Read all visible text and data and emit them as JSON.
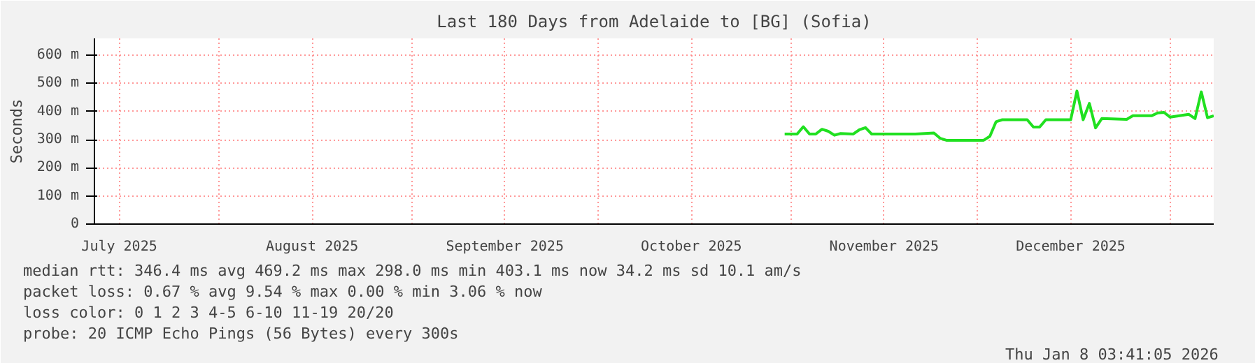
{
  "chart_data": {
    "type": "line",
    "title": "Last 180 Days from Adelaide to [BG] (Sofia)",
    "ylabel": "Seconds",
    "x": [
      "2025-10-31",
      "2025-11-02",
      "2025-11-03",
      "2025-11-04",
      "2025-11-05",
      "2025-11-06",
      "2025-11-07",
      "2025-11-08",
      "2025-11-09",
      "2025-11-11",
      "2025-11-12",
      "2025-11-13",
      "2025-11-14",
      "2025-11-21",
      "2025-11-24",
      "2025-11-25",
      "2025-11-26",
      "2025-12-02",
      "2025-12-03",
      "2025-12-04",
      "2025-12-05",
      "2025-12-09",
      "2025-12-10",
      "2025-12-11",
      "2025-12-12",
      "2025-12-16",
      "2025-12-17",
      "2025-12-18",
      "2025-12-19",
      "2025-12-20",
      "2025-12-21",
      "2025-12-25",
      "2025-12-26",
      "2025-12-29",
      "2025-12-30",
      "2025-12-31",
      "2026-01-01",
      "2026-01-04",
      "2026-01-05",
      "2026-01-06",
      "2026-01-07",
      "2026-01-08"
    ],
    "series": [
      {
        "color": "#20e020",
        "values": [
          320,
          320,
          346,
          320,
          320,
          337,
          330,
          316,
          322,
          320,
          335,
          343,
          320,
          320,
          324,
          305,
          298,
          298,
          312,
          364,
          371,
          371,
          345,
          345,
          371,
          371,
          473,
          371,
          429,
          342,
          375,
          372,
          385,
          385,
          395,
          397,
          380,
          390,
          375,
          470,
          378,
          385
        ]
      }
    ],
    "xlim": [
      "2025-07-12",
      "2026-01-08"
    ],
    "xticks": [
      {
        "value": "2025-07-16",
        "label": "July 2025"
      },
      {
        "value": "2025-08-01",
        "label": null
      },
      {
        "value": "2025-08-16",
        "label": "August 2025"
      },
      {
        "value": "2025-09-01",
        "label": null
      },
      {
        "value": "2025-09-16",
        "label": "September 2025"
      },
      {
        "value": "2025-10-01",
        "label": null
      },
      {
        "value": "2025-10-16",
        "label": "October 2025"
      },
      {
        "value": "2025-11-01",
        "label": null
      },
      {
        "value": "2025-11-16",
        "label": "November 2025"
      },
      {
        "value": "2025-12-01",
        "label": null
      },
      {
        "value": "2025-12-16",
        "label": "December 2025"
      },
      {
        "value": "2026-01-01",
        "label": null
      }
    ],
    "ylim": [
      0,
      660
    ],
    "yticks": [
      0,
      {
        "value": 100,
        "label": "100 m"
      },
      {
        "value": 200,
        "label": "200 m"
      },
      {
        "value": 300,
        "label": "300 m"
      },
      {
        "value": 400,
        "label": "400 m"
      },
      {
        "value": 500,
        "label": "500 m"
      },
      {
        "value": 600,
        "label": "600 m"
      }
    ],
    "grid": true,
    "marker": "none",
    "line_style": "solid",
    "annotations": [
      "median rtt:  346.4 ms avg  469.2 ms max  298.0 ms min  403.1 ms now  34.2 ms sd  10.1   am/s",
      "packet loss: 0.67 % avg  9.54 % max  0.00 % min  3.06 % now",
      "loss color:  0  1  2  3  4-5  6-10  11-19  20/20",
      "probe:       20 ICMP Echo Pings (56 Bytes) every 300s",
      "Thu Jan  8 03:41:05 2026"
    ]
  }
}
